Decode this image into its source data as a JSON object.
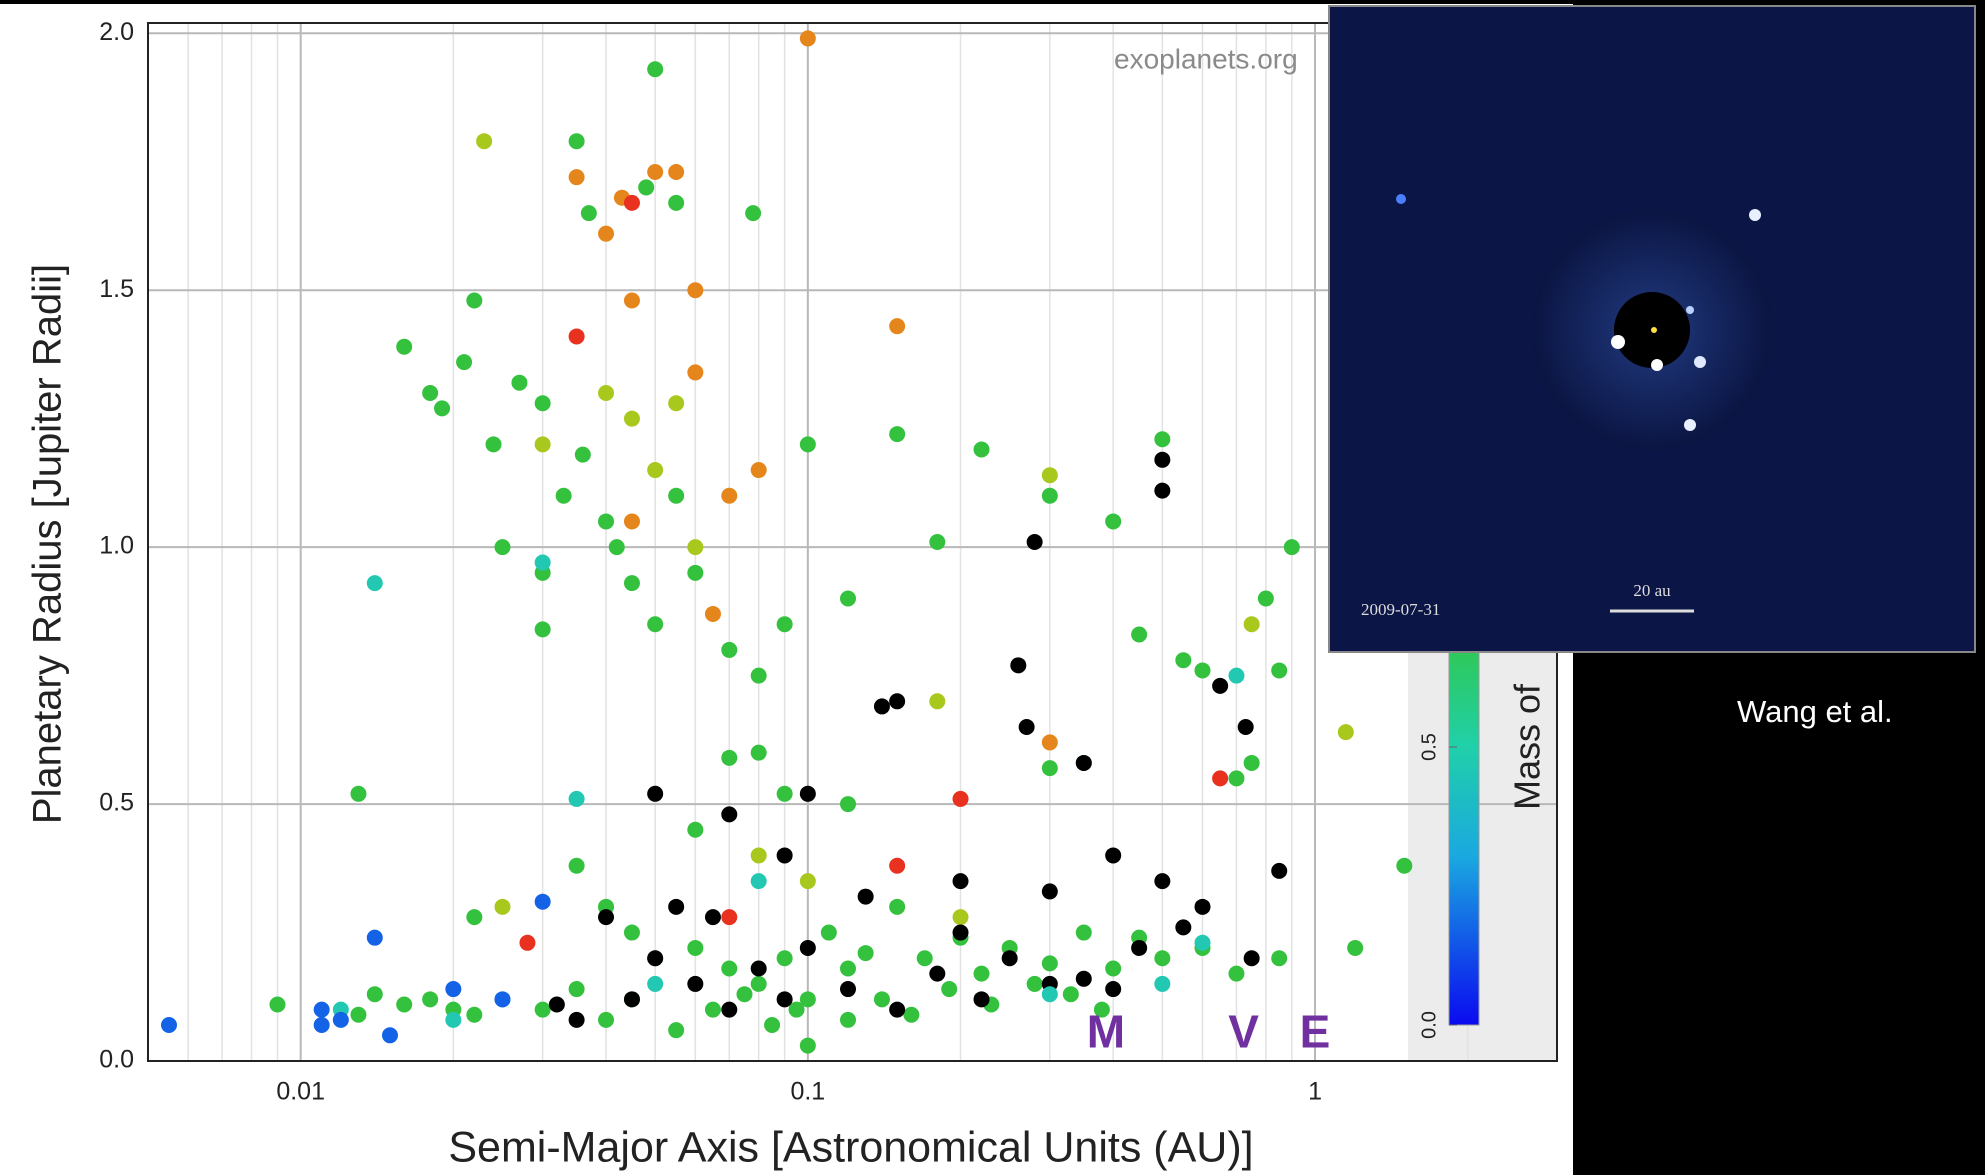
{
  "chart_data": {
    "type": "scatter",
    "xlabel": "Semi-Major Axis [Astronomical Units (AU)]",
    "ylabel": "Planetary Radius [Jupiter Radii]",
    "watermark": "exoplanets.org",
    "xscale": "log",
    "xlim": [
      0.005,
      3.0
    ],
    "ylim": [
      0,
      2.02
    ],
    "xticks": [
      0.01,
      0.1,
      1
    ],
    "xminorticks": [
      0.006,
      0.007,
      0.008,
      0.009,
      0.02,
      0.03,
      0.04,
      0.05,
      0.06,
      0.07,
      0.08,
      0.09,
      0.2,
      0.3,
      0.4,
      0.5,
      0.6,
      0.7,
      0.8,
      0.9,
      2,
      3
    ],
    "yticks": [
      {
        "value": 0,
        "label": "0.0"
      },
      {
        "value": 0.5,
        "label": "0.5"
      },
      {
        "value": 1.0,
        "label": "1.0"
      },
      {
        "value": 1.5,
        "label": "1.5"
      },
      {
        "value": 2.0,
        "label": "2.0"
      }
    ],
    "grid": true,
    "series": [
      {
        "color": "#34c13e",
        "x": [
          0.014,
          0.016,
          0.018,
          0.02,
          0.022,
          0.013,
          0.016,
          0.018,
          0.021,
          0.022,
          0.019,
          0.024,
          0.027,
          0.03,
          0.033,
          0.03,
          0.036,
          0.04,
          0.042,
          0.045,
          0.05,
          0.055,
          0.06,
          0.07,
          0.08,
          0.09,
          0.1,
          0.12,
          0.15,
          0.18,
          0.22,
          0.3,
          0.4,
          0.5,
          0.55,
          0.6,
          0.75,
          0.9,
          0.013,
          0.009,
          0.035,
          0.04,
          0.045,
          0.05,
          0.06,
          0.07,
          0.08,
          0.09,
          0.1,
          0.11,
          0.12,
          0.13,
          0.15,
          0.17,
          0.2,
          0.22,
          0.25,
          0.3,
          0.35,
          0.4,
          0.45,
          0.5,
          0.6,
          0.7,
          0.85,
          1.2,
          1.5,
          0.03,
          0.035,
          0.04,
          0.045,
          0.055,
          0.065,
          0.075,
          0.085,
          0.095,
          0.1,
          0.12,
          0.14,
          0.16,
          0.19,
          0.23,
          0.28,
          0.33,
          0.38,
          0.05,
          0.035,
          0.037,
          0.048,
          0.055,
          0.078,
          0.06,
          0.07,
          0.08,
          0.09,
          0.12,
          0.3,
          0.35,
          0.45,
          0.8,
          0.85,
          0.7,
          0.03,
          0.025,
          0.022
        ],
        "values": [
          0.13,
          0.11,
          0.12,
          0.1,
          0.09,
          0.09,
          1.39,
          1.3,
          1.36,
          1.48,
          1.27,
          1.2,
          1.32,
          1.28,
          1.1,
          0.84,
          1.18,
          1.05,
          1.0,
          0.93,
          0.85,
          1.1,
          0.95,
          0.8,
          0.75,
          0.85,
          1.2,
          0.9,
          1.22,
          1.01,
          1.19,
          1.1,
          1.05,
          1.21,
          0.78,
          0.76,
          0.58,
          1.0,
          0.52,
          0.11,
          0.38,
          0.3,
          0.25,
          0.2,
          0.22,
          0.18,
          0.15,
          0.2,
          0.12,
          0.25,
          0.18,
          0.21,
          0.3,
          0.2,
          0.24,
          0.17,
          0.22,
          0.19,
          0.25,
          0.18,
          0.24,
          0.2,
          0.22,
          0.17,
          0.2,
          0.22,
          0.38,
          0.1,
          0.14,
          0.08,
          0.12,
          0.06,
          0.1,
          0.13,
          0.07,
          0.1,
          0.03,
          0.08,
          0.12,
          0.09,
          0.14,
          0.11,
          0.15,
          0.13,
          0.1,
          1.93,
          1.79,
          1.65,
          1.7,
          1.67,
          1.65,
          0.45,
          0.59,
          0.6,
          0.52,
          0.5,
          0.57,
          0.58,
          0.83,
          0.9,
          0.76,
          0.55,
          0.95,
          1.0,
          0.28
        ]
      },
      {
        "color": "#a8c81e",
        "x": [
          0.023,
          0.03,
          0.04,
          0.045,
          0.05,
          0.055,
          0.06,
          0.1,
          0.2,
          0.3,
          0.18,
          0.75,
          1.15,
          0.025,
          0.08
        ],
        "values": [
          1.79,
          1.2,
          1.3,
          1.25,
          1.15,
          1.28,
          1.0,
          0.35,
          0.28,
          1.14,
          0.7,
          0.85,
          0.64,
          0.3,
          0.4
        ]
      },
      {
        "color": "#e5861c",
        "x": [
          0.04,
          0.043,
          0.05,
          0.055,
          0.06,
          0.045,
          0.1,
          0.15,
          0.06,
          0.07,
          0.08,
          0.065,
          0.3,
          0.045,
          0.035
        ],
        "values": [
          1.61,
          1.68,
          1.73,
          1.73,
          1.5,
          1.48,
          1.99,
          1.43,
          1.34,
          1.1,
          1.15,
          0.87,
          0.62,
          1.05,
          1.72
        ]
      },
      {
        "color": "#e8311f",
        "x": [
          0.035,
          0.045,
          0.07,
          0.2,
          0.15,
          0.65,
          0.028
        ],
        "values": [
          1.41,
          1.67,
          0.28,
          0.51,
          0.38,
          0.55,
          0.23
        ]
      },
      {
        "color": "#000000",
        "x": [
          0.5,
          0.5,
          0.28,
          0.26,
          0.15,
          0.14,
          0.27,
          0.35,
          0.65,
          0.73,
          0.05,
          0.1,
          0.07,
          0.85,
          0.5,
          0.4,
          0.75,
          0.04,
          0.05,
          0.06,
          0.07,
          0.08,
          0.09,
          0.1,
          0.12,
          0.15,
          0.18,
          0.22,
          0.25,
          0.3,
          0.35,
          0.4,
          0.45,
          0.55,
          0.13,
          0.2,
          0.032,
          0.035,
          0.045,
          0.055,
          0.065,
          0.09,
          0.2,
          0.3,
          0.6
        ],
        "values": [
          1.17,
          1.11,
          1.01,
          0.77,
          0.7,
          0.69,
          0.65,
          0.58,
          0.73,
          0.65,
          0.52,
          0.52,
          0.48,
          0.37,
          0.35,
          0.4,
          0.2,
          0.28,
          0.2,
          0.15,
          0.1,
          0.18,
          0.12,
          0.22,
          0.14,
          0.1,
          0.17,
          0.12,
          0.2,
          0.15,
          0.16,
          0.14,
          0.22,
          0.26,
          0.32,
          0.35,
          0.11,
          0.08,
          0.12,
          0.3,
          0.28,
          0.4,
          0.25,
          0.33,
          0.3
        ]
      },
      {
        "color": "#22c8b2",
        "x": [
          0.014,
          0.035,
          0.03,
          0.025,
          0.05,
          0.08,
          0.3,
          0.5,
          0.7,
          0.6,
          0.02,
          0.012
        ],
        "values": [
          0.93,
          0.51,
          0.97,
          0.12,
          0.15,
          0.35,
          0.13,
          0.15,
          0.75,
          0.23,
          0.08,
          0.1
        ]
      },
      {
        "color": "#1462e6",
        "x": [
          0.0055,
          0.011,
          0.011,
          0.014,
          0.015,
          0.02,
          0.025,
          0.03,
          0.012
        ],
        "values": [
          0.07,
          0.1,
          0.07,
          0.24,
          0.05,
          0.14,
          0.12,
          0.31,
          0.08
        ]
      }
    ],
    "annotations": [
      {
        "text": "M",
        "x": 0.387,
        "y": 0.05
      },
      {
        "text": "V",
        "x": 0.723,
        "y": 0.05
      },
      {
        "text": "E",
        "x": 1.0,
        "y": 0.05
      }
    ],
    "colorbar": {
      "label": "Mass of",
      "ticks": [
        {
          "value": 0,
          "label": "0.0"
        },
        {
          "value": 0.5,
          "label": "0.5"
        }
      ]
    }
  },
  "inset": {
    "date": "2009-07-31",
    "scale": "20 au"
  },
  "credit": "Wang et al."
}
